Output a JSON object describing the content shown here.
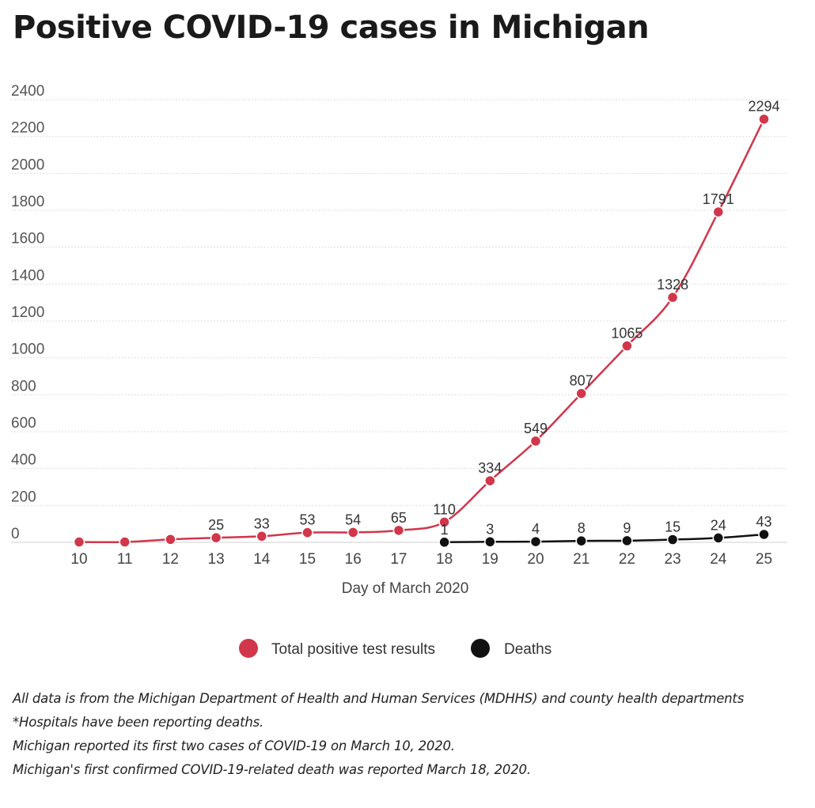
{
  "title": "Positive COVID-19 cases in Michigan",
  "chart_data": {
    "type": "line",
    "title": "Positive COVID-19 cases in Michigan",
    "xlabel": "Day of March 2020",
    "ylabel": "",
    "ylim": [
      0,
      2400
    ],
    "yticks": [
      0,
      200,
      400,
      600,
      800,
      1000,
      1200,
      1400,
      1600,
      1800,
      2000,
      2200,
      2400
    ],
    "xticks": [
      10,
      11,
      12,
      13,
      14,
      15,
      16,
      17,
      18,
      19,
      20,
      21,
      22,
      23,
      24,
      25
    ],
    "grid": "horizontal dashed",
    "legend": "bottom-center",
    "series": [
      {
        "name": "Total positive test results",
        "color": "#d1364a",
        "x": [
          10,
          11,
          12,
          13,
          14,
          15,
          16,
          17,
          18,
          19,
          20,
          21,
          22,
          23,
          24,
          25
        ],
        "values": [
          2,
          2,
          16,
          25,
          33,
          53,
          54,
          65,
          110,
          334,
          549,
          807,
          1065,
          1328,
          1791,
          2294
        ],
        "labels": [
          "",
          "",
          "",
          "25",
          "33",
          "53",
          "54",
          "65",
          "110",
          "334",
          "549",
          "807",
          "1065",
          "1328",
          "1791",
          "2294"
        ]
      },
      {
        "name": "Deaths",
        "color": "#111111",
        "x": [
          18,
          19,
          20,
          21,
          22,
          23,
          24,
          25
        ],
        "values": [
          1,
          3,
          4,
          8,
          9,
          15,
          24,
          43
        ],
        "labels": [
          "1",
          "3",
          "4",
          "8",
          "9",
          "15",
          "24",
          "43"
        ]
      }
    ]
  },
  "notes": [
    "All data is from the Michigan Department of Health and Human Services (MDHHS) and county health departments",
    "*Hospitals have been reporting deaths.",
    "Michigan reported its first two cases of COVID-19 on March 10, 2020.",
    "Michigan's first confirmed COVID-19-related death was reported March 18, 2020."
  ]
}
